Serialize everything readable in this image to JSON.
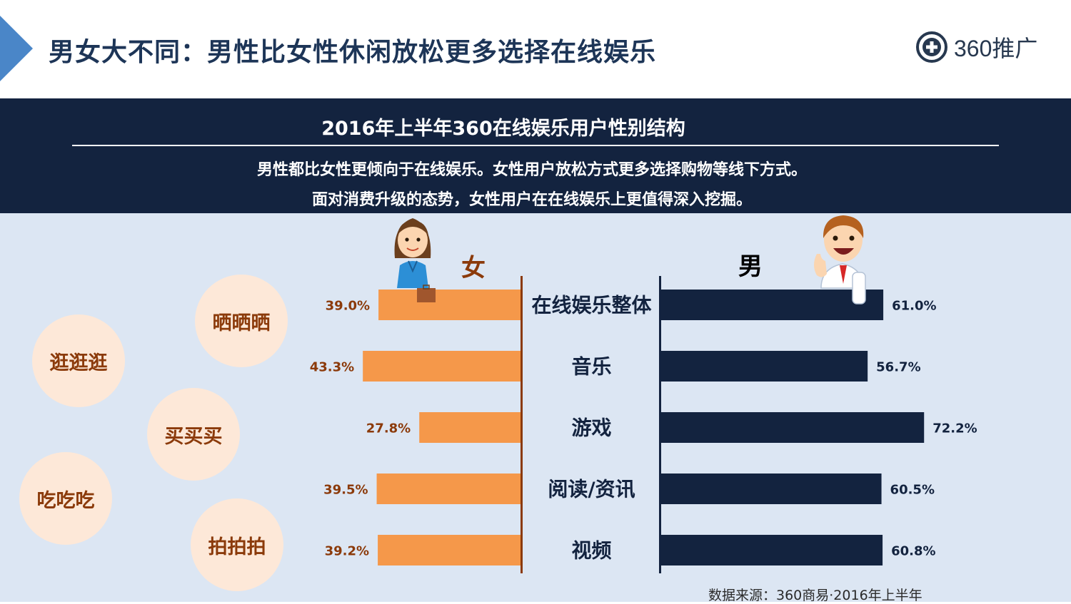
{
  "header": {
    "title": "男女大不同：男性比女性休闲放松更多选择在线娱乐",
    "logo_text": "360推广"
  },
  "band": {
    "subtitle_1": "男性都比女性更倾向于在线娱乐。女性用户放松方式更多选择购物等线下方式。",
    "subtitle_2": "面对消费升级的态势，女性用户在在线娱乐上更值得深入挖掘。"
  },
  "bubbles": [
    "晒晒晒",
    "逛逛逛",
    "买买买",
    "吃吃吃",
    "拍拍拍"
  ],
  "source": "数据来源：360商易·2016年上半年",
  "colors": {
    "female": "#f5984a",
    "male": "#13233f",
    "female_label": "#8b3a0a",
    "male_label": "#13233f"
  },
  "chart_data": {
    "type": "bar",
    "title": "2016年上半年360在线娱乐用户性别结构",
    "categories": [
      "在线娱乐整体",
      "音乐",
      "游戏",
      "阅读/资讯",
      "视频"
    ],
    "series": [
      {
        "name": "女",
        "values": [
          39.0,
          43.3,
          27.8,
          39.5,
          39.2
        ],
        "labels": [
          "39.0%",
          "43.3%",
          "27.8%",
          "39.5%",
          "39.2%"
        ]
      },
      {
        "name": "男",
        "values": [
          61.0,
          56.7,
          72.2,
          60.5,
          60.8
        ],
        "labels": [
          "61.0%",
          "56.7%",
          "72.2%",
          "60.5%",
          "60.8%"
        ]
      }
    ],
    "unit": "%",
    "orientation": "horizontal-diverging",
    "xlim": [
      0,
      100
    ]
  }
}
